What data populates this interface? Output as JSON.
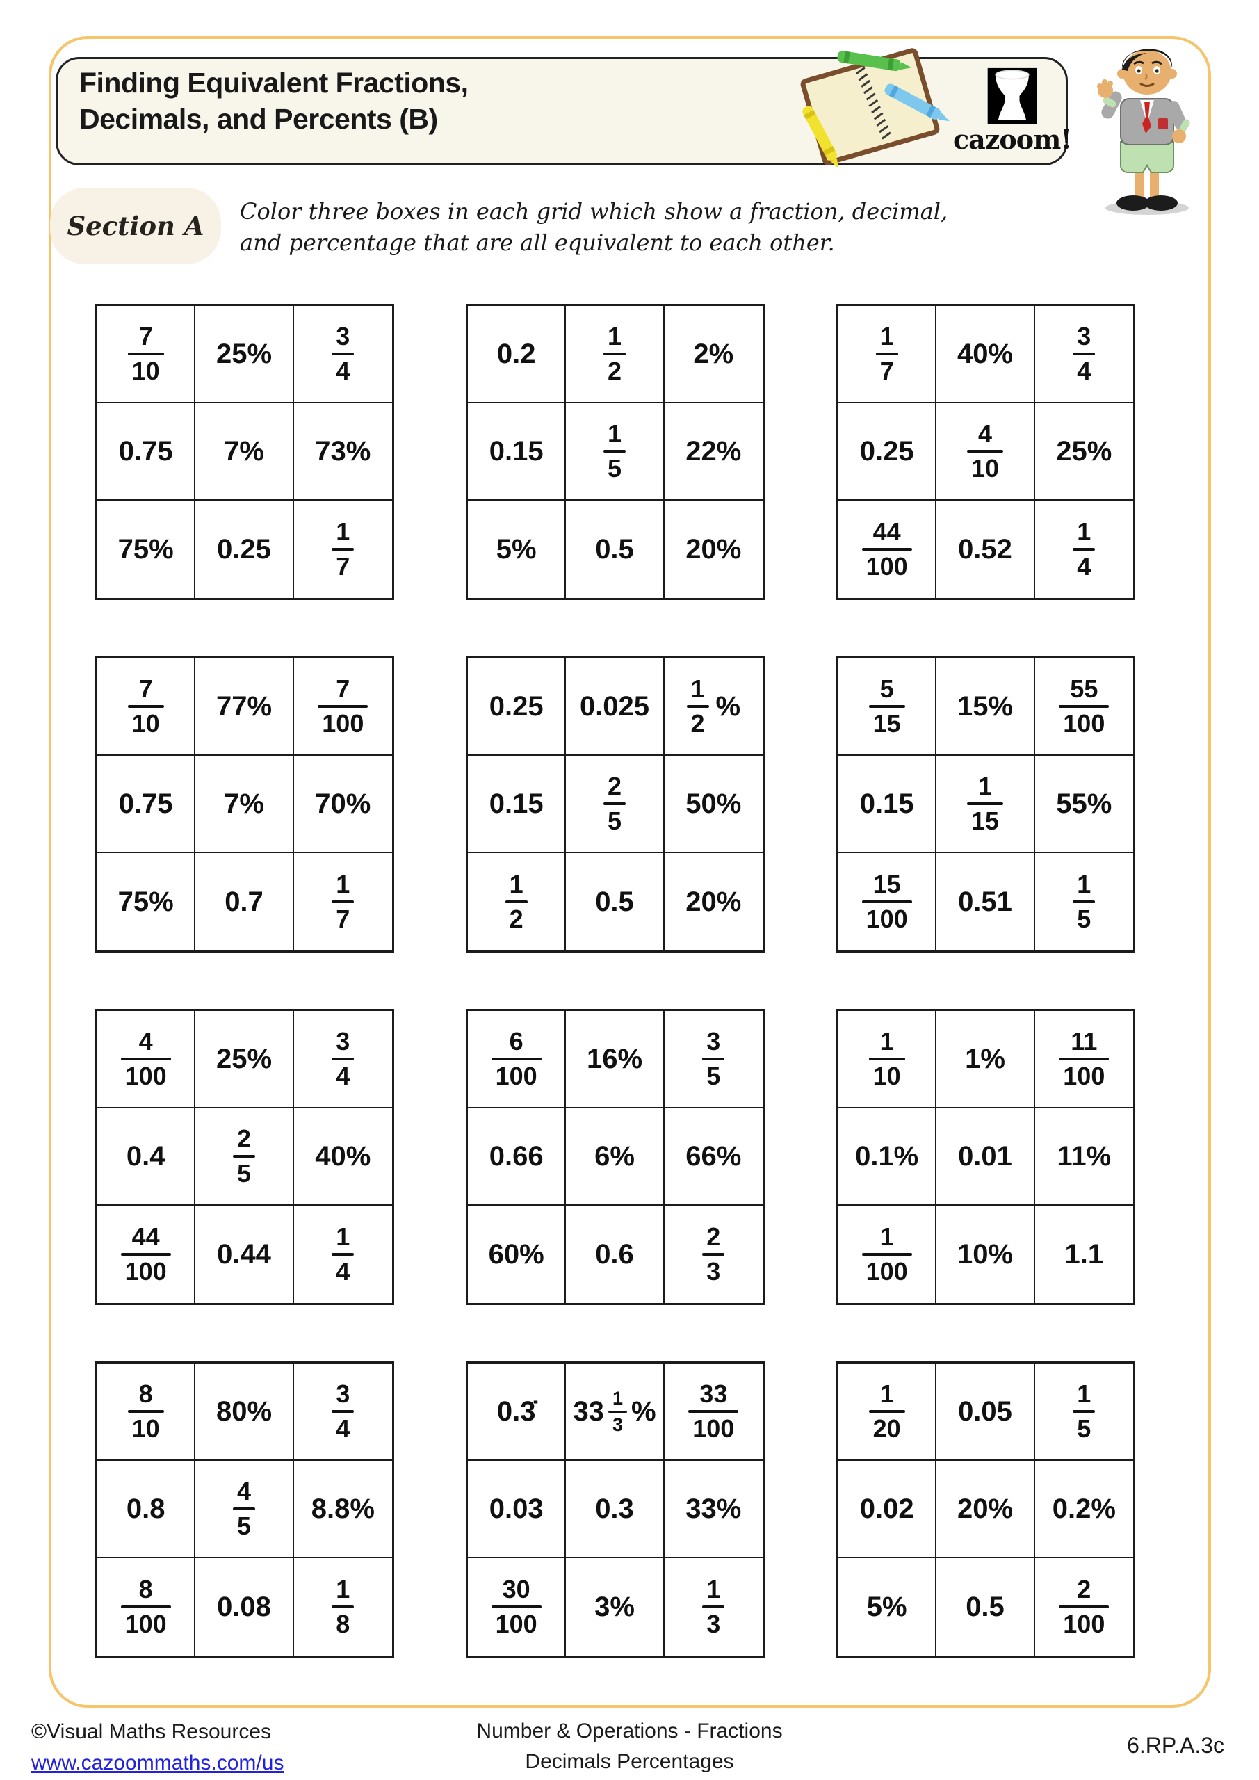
{
  "header": {
    "title_line1": "Finding Equivalent Fractions,",
    "title_line2": "Decimals, and Percents (B)",
    "logo_text": "cazoom!"
  },
  "section": {
    "label": "Section A",
    "instruction_line1": "Color three boxes in each grid which show a fraction, decimal,",
    "instruction_line2": "and percentage that are all equivalent to each other."
  },
  "grids": [
    {
      "cells": [
        "f:7/10",
        "t:25%",
        "f:3/4",
        "t:0.75",
        "t:7%",
        "t:73%",
        "t:75%",
        "t:0.25",
        "f:1/7"
      ]
    },
    {
      "cells": [
        "t:0.2",
        "f:1/2",
        "t:2%",
        "t:0.15",
        "f:1/5",
        "t:22%",
        "t:5%",
        "t:0.5",
        "t:20%"
      ]
    },
    {
      "cells": [
        "f:1/7",
        "t:40%",
        "f:3/4",
        "t:0.25",
        "f:4/10",
        "t:25%",
        "f:44/100",
        "t:0.52",
        "f:1/4"
      ]
    },
    {
      "cells": [
        "f:7/10",
        "t:77%",
        "f:7/100",
        "t:0.75",
        "t:7%",
        "t:70%",
        "t:75%",
        "t:0.7",
        "f:1/7"
      ]
    },
    {
      "cells": [
        "t:0.25",
        "t:0.025",
        "fp:1/2|%",
        "t:0.15",
        "f:2/5",
        "t:50%",
        "f:1/2",
        "t:0.5",
        "t:20%"
      ]
    },
    {
      "cells": [
        "f:5/15",
        "t:15%",
        "f:55/100",
        "t:0.15",
        "f:1/15",
        "t:55%",
        "f:15/100",
        "t:0.51",
        "f:1/5"
      ]
    },
    {
      "cells": [
        "f:4/100",
        "t:25%",
        "f:3/4",
        "t:0.4",
        "f:2/5",
        "t:40%",
        "f:44/100",
        "t:0.44",
        "f:1/4"
      ]
    },
    {
      "cells": [
        "f:6/100",
        "t:16%",
        "f:3/5",
        "t:0.66",
        "t:6%",
        "t:66%",
        "t:60%",
        "t:0.6",
        "f:2/3"
      ]
    },
    {
      "cells": [
        "f:1/10",
        "t:1%",
        "f:11/100",
        "t:0.1%",
        "t:0.01",
        "t:11%",
        "f:1/100",
        "t:10%",
        "t:1.1"
      ]
    },
    {
      "cells": [
        "f:8/10",
        "t:80%",
        "f:3/4",
        "t:0.8",
        "f:4/5",
        "t:8.8%",
        "f:8/100",
        "t:0.08",
        "f:1/8"
      ]
    },
    {
      "cells": [
        "t:0.3̇",
        "m:33|1/3|%",
        "f:33/100",
        "t:0.03",
        "t:0.3",
        "t:33%",
        "f:30/100",
        "t:3%",
        "f:1/3"
      ]
    },
    {
      "cells": [
        "f:1/20",
        "t:0.05",
        "f:1/5",
        "t:0.02",
        "t:20%",
        "t:0.2%",
        "t:5%",
        "t:0.5",
        "f:2/100"
      ]
    }
  ],
  "footer": {
    "copyright": "©Visual Maths Resources",
    "url": "www.cazoommaths.com/us",
    "center_line1": "Number & Operations - Fractions",
    "center_line2": "Decimals Percentages",
    "standard": "6.RP.A.3c"
  },
  "colors": {
    "frame_border": "#F6C46B",
    "title_box_bg": "#F8F5EB",
    "section_pill_bg": "#F8F1E5",
    "link_blue": "#2222DD",
    "text_dark": "#1A1A1A"
  }
}
